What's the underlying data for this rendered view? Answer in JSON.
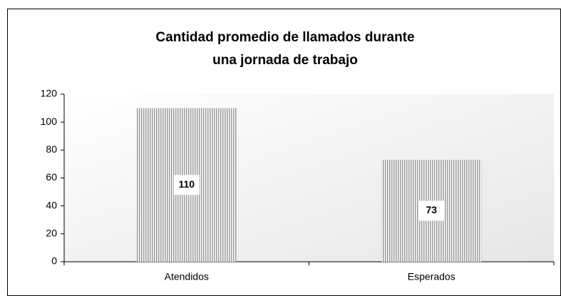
{
  "chart_data": {
    "type": "bar",
    "title": [
      "Cantidad promedio de llamados durante",
      "una jornada de trabajo"
    ],
    "categories": [
      "Atendidos",
      "Esperados"
    ],
    "values": [
      110,
      73
    ],
    "color": "#9a9a9a",
    "ylim": [
      0,
      120
    ],
    "yticks": [
      0,
      20,
      40,
      60,
      80,
      100,
      120
    ]
  }
}
